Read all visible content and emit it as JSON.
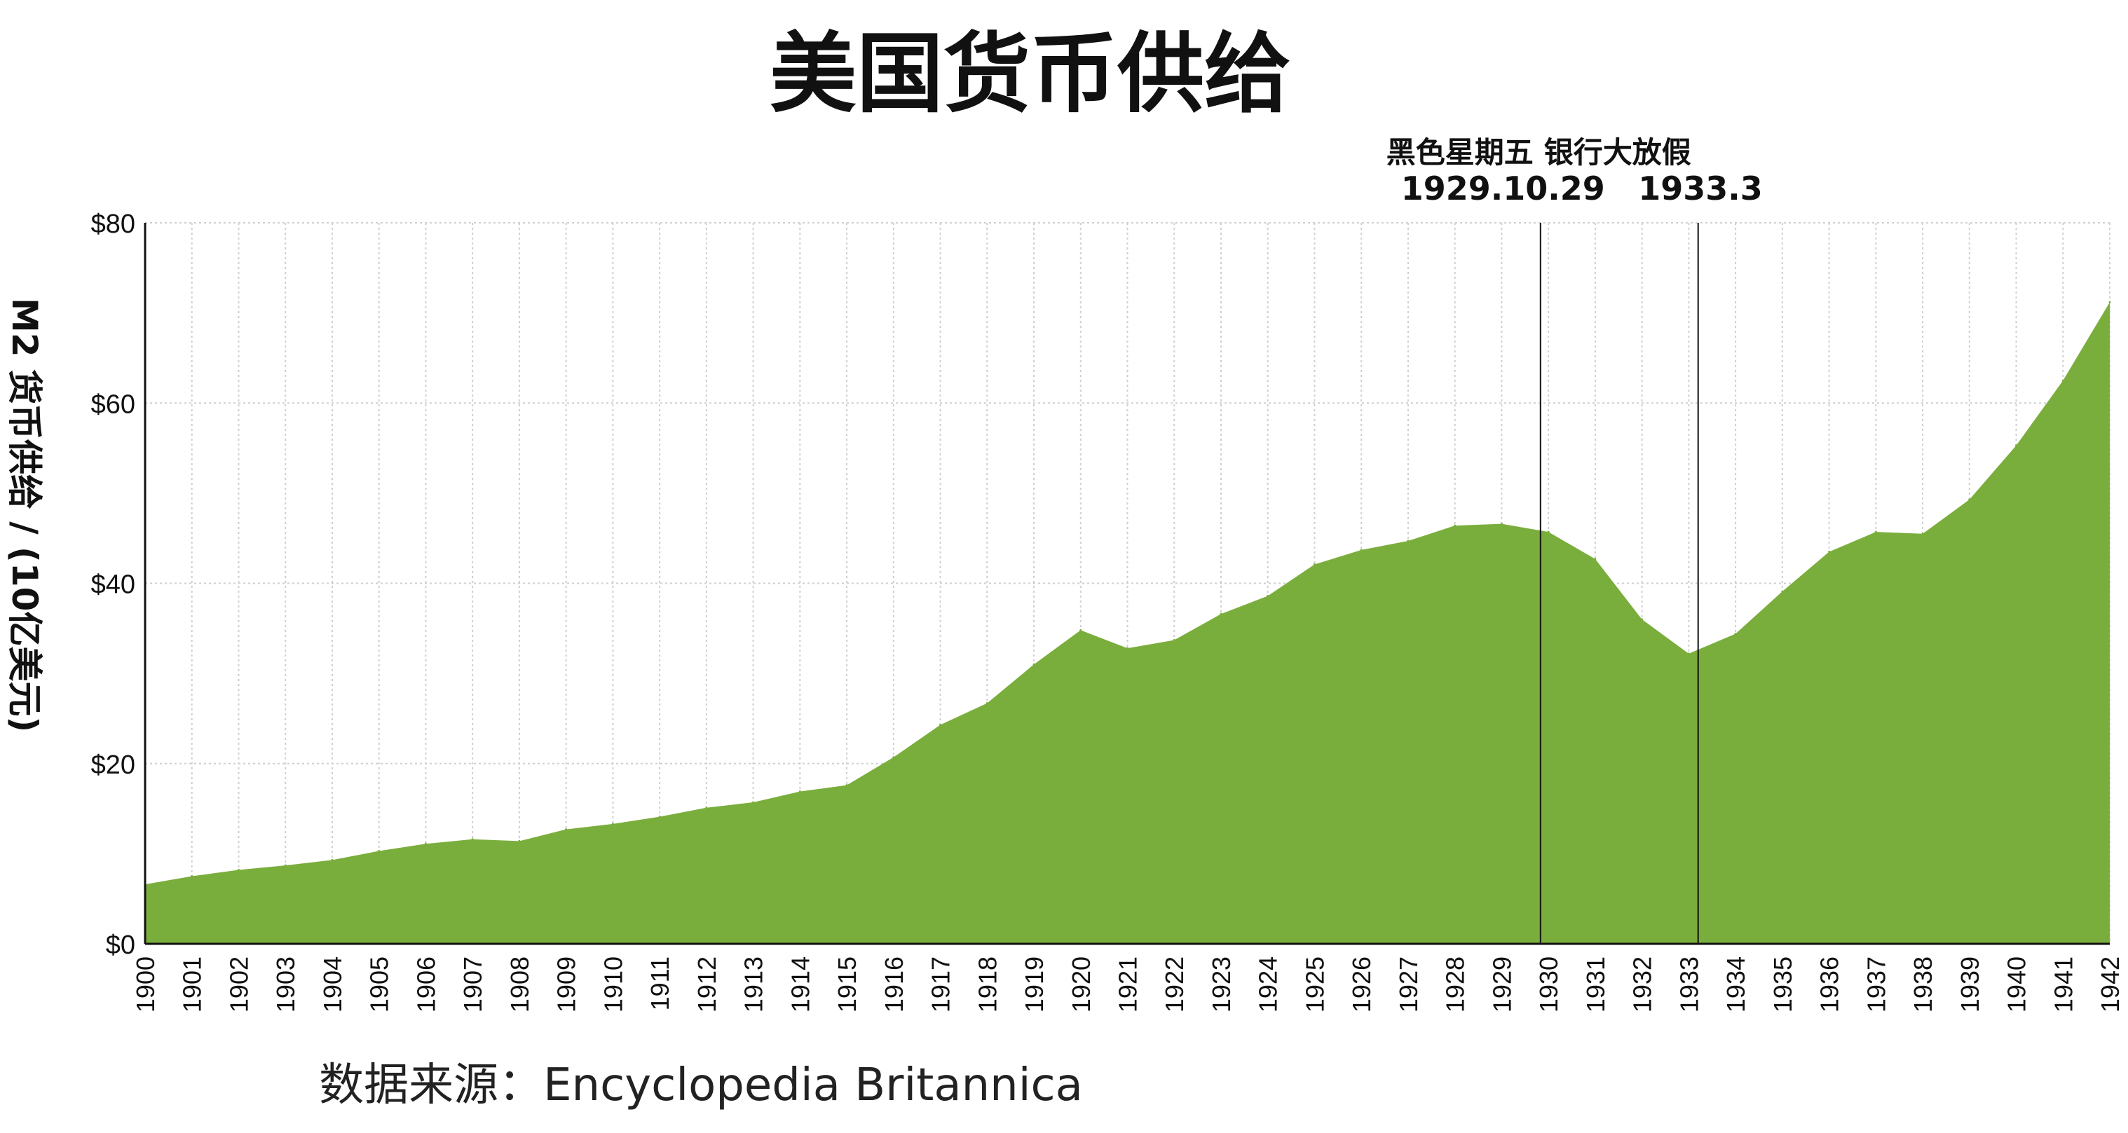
{
  "chart_data": {
    "type": "area",
    "title": "美国货币供给",
    "ylabel": "M2 货币供给 / (10亿美元)",
    "xlabel": "",
    "source": "数据来源：Encyclopedia Britannica",
    "ylim": [
      0,
      80
    ],
    "yticks": [
      0,
      20,
      40,
      60,
      80
    ],
    "ytick_labels": [
      "$0",
      "$20",
      "$40",
      "$60",
      "$80"
    ],
    "grid": true,
    "fill_color": "#7aae3c",
    "x": [
      1900,
      1901,
      1902,
      1903,
      1904,
      1905,
      1906,
      1907,
      1908,
      1909,
      1910,
      1911,
      1912,
      1913,
      1914,
      1915,
      1916,
      1917,
      1918,
      1919,
      1920,
      1921,
      1922,
      1923,
      1924,
      1925,
      1926,
      1927,
      1928,
      1929,
      1930,
      1931,
      1932,
      1933,
      1934,
      1935,
      1936,
      1937,
      1938,
      1939,
      1940,
      1941,
      1942
    ],
    "x_labels": [
      "1900",
      "1901",
      "1902",
      "1903",
      "1904",
      "1905",
      "1906",
      "1907",
      "1908",
      "1909",
      "1910",
      "1911",
      "1912",
      "1913",
      "1914",
      "1915",
      "1916",
      "1917",
      "1918",
      "1919",
      "1920",
      "1921",
      "1922",
      "1923",
      "1924",
      "1925",
      "1926",
      "1927",
      "1928",
      "1929",
      "1930",
      "1931",
      "1932",
      "1933",
      "1934",
      "1935",
      "1936",
      "1937",
      "1938",
      "1939",
      "1940",
      "1941",
      "1942"
    ],
    "values": [
      6.6,
      7.5,
      8.2,
      8.7,
      9.3,
      10.3,
      11.1,
      11.6,
      11.4,
      12.7,
      13.3,
      14.1,
      15.1,
      15.7,
      16.9,
      17.6,
      20.7,
      24.3,
      26.7,
      31.0,
      34.8,
      32.8,
      33.7,
      36.6,
      38.6,
      42.1,
      43.7,
      44.7,
      46.4,
      46.6,
      45.7,
      42.7,
      36.0,
      32.2,
      34.4,
      39.1,
      43.5,
      45.7,
      45.5,
      49.3,
      55.3,
      62.5,
      71.2
    ],
    "annotations": [
      {
        "label": "黑色星期五",
        "date": "1929.10.29",
        "x": 1929.83
      },
      {
        "label": "银行大放假",
        "date": "1933.3",
        "x": 1933.2
      }
    ]
  }
}
